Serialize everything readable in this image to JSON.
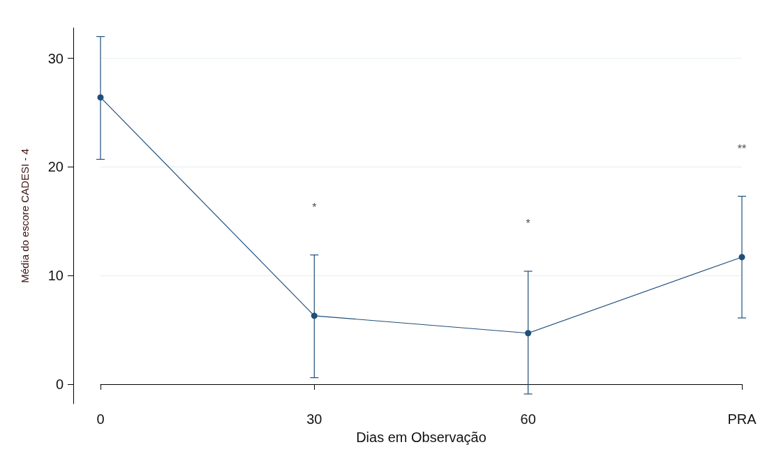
{
  "chart_data": {
    "type": "line",
    "xlabel": "Dias em Observação",
    "ylabel": "Média do escore CADESI - 4",
    "categories": [
      "0",
      "30",
      "60",
      "PRA"
    ],
    "series": [
      {
        "color": "#1f4e79",
        "values": [
          26.4,
          6.3,
          4.7,
          11.7
        ],
        "errors": [
          [
            20.7,
            32.0
          ],
          [
            0.6,
            11.9
          ],
          [
            -0.9,
            10.4
          ],
          [
            6.1,
            17.3
          ]
        ]
      }
    ],
    "ylim": [
      -1.8,
      32.8
    ],
    "yticks": [
      0,
      10,
      20,
      30
    ],
    "grid": "y",
    "marker": "circle",
    "line_style": "solid",
    "annotations": [
      "*",
      "*",
      "**"
    ]
  }
}
